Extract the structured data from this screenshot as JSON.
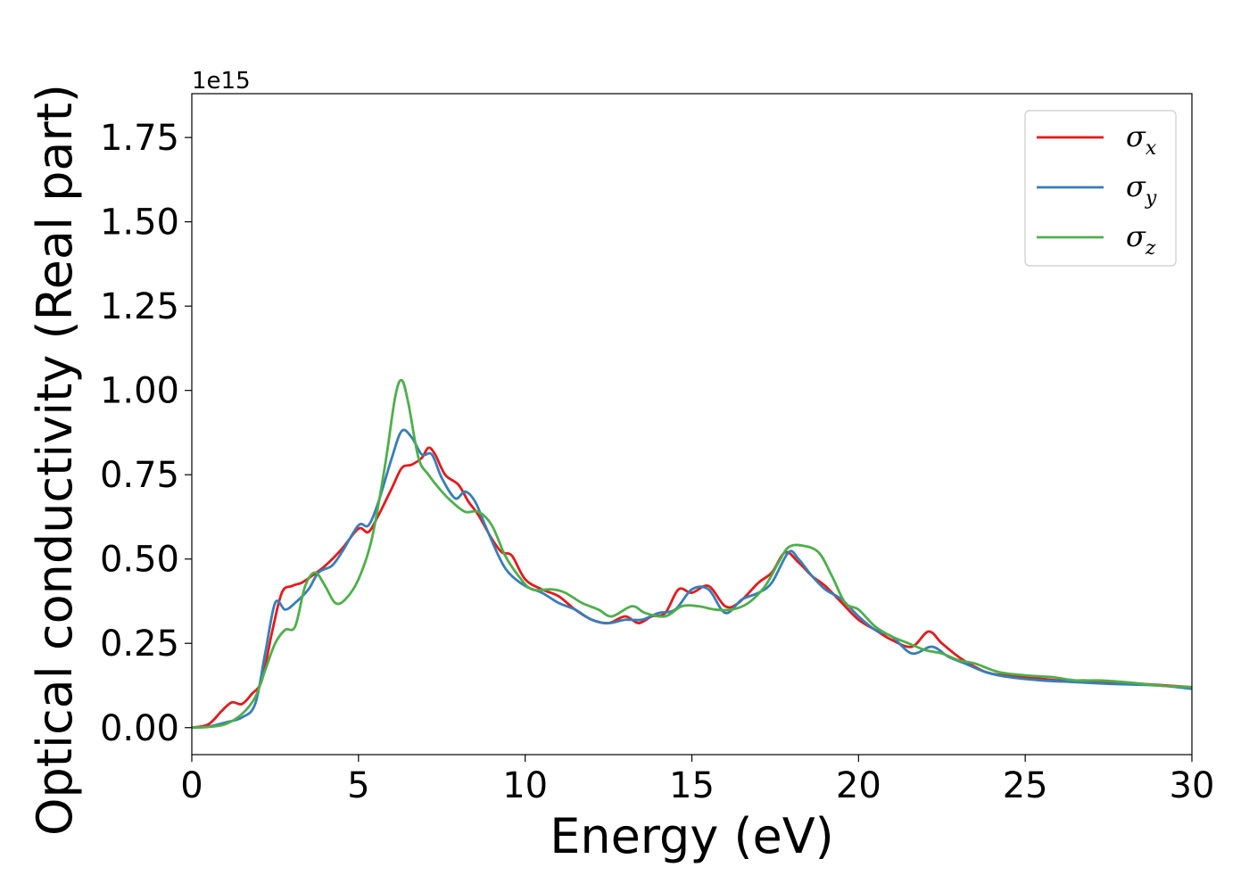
{
  "chart_data": {
    "type": "line",
    "title": "",
    "xlabel": "Energy (eV)",
    "ylabel": "Optical conductivity (Real part)",
    "y_offset_label": "1e15",
    "xlim": [
      0,
      30
    ],
    "ylim": [
      -0.08,
      1.88
    ],
    "x_ticks": [
      0,
      5,
      10,
      15,
      20,
      25,
      30
    ],
    "x_tick_labels": [
      "0",
      "5",
      "10",
      "15",
      "20",
      "25",
      "30"
    ],
    "y_ticks": [
      0.0,
      0.25,
      0.5,
      0.75,
      1.0,
      1.25,
      1.5,
      1.75
    ],
    "y_tick_labels": [
      "0.00",
      "0.25",
      "0.50",
      "0.75",
      "1.00",
      "1.25",
      "1.50",
      "1.75"
    ],
    "grid": false,
    "legend_position": "top-right",
    "series": [
      {
        "name": "σ",
        "subscript": "x",
        "color": "#e41a1c",
        "points": [
          [
            0,
            0
          ],
          [
            0.5,
            0.01
          ],
          [
            0.9,
            0.05
          ],
          [
            1.2,
            0.075
          ],
          [
            1.5,
            0.07
          ],
          [
            1.8,
            0.1
          ],
          [
            2.1,
            0.14
          ],
          [
            2.4,
            0.28
          ],
          [
            2.7,
            0.4
          ],
          [
            3.0,
            0.42
          ],
          [
            3.3,
            0.43
          ],
          [
            3.6,
            0.45
          ],
          [
            4.0,
            0.48
          ],
          [
            4.5,
            0.53
          ],
          [
            5.0,
            0.59
          ],
          [
            5.3,
            0.58
          ],
          [
            5.6,
            0.63
          ],
          [
            6.0,
            0.71
          ],
          [
            6.3,
            0.77
          ],
          [
            6.6,
            0.78
          ],
          [
            6.9,
            0.8
          ],
          [
            7.1,
            0.83
          ],
          [
            7.3,
            0.81
          ],
          [
            7.6,
            0.75
          ],
          [
            8.0,
            0.72
          ],
          [
            8.3,
            0.67
          ],
          [
            8.6,
            0.63
          ],
          [
            9.0,
            0.56
          ],
          [
            9.3,
            0.52
          ],
          [
            9.6,
            0.51
          ],
          [
            10.0,
            0.44
          ],
          [
            10.5,
            0.41
          ],
          [
            11.0,
            0.39
          ],
          [
            11.5,
            0.35
          ],
          [
            12.0,
            0.32
          ],
          [
            12.5,
            0.31
          ],
          [
            13.0,
            0.33
          ],
          [
            13.4,
            0.31
          ],
          [
            13.8,
            0.33
          ],
          [
            14.2,
            0.34
          ],
          [
            14.6,
            0.41
          ],
          [
            15.0,
            0.4
          ],
          [
            15.5,
            0.42
          ],
          [
            16.0,
            0.36
          ],
          [
            16.4,
            0.37
          ],
          [
            17.0,
            0.43
          ],
          [
            17.4,
            0.46
          ],
          [
            17.8,
            0.52
          ],
          [
            18.2,
            0.49
          ],
          [
            18.6,
            0.45
          ],
          [
            19.0,
            0.42
          ],
          [
            19.5,
            0.37
          ],
          [
            20.0,
            0.32
          ],
          [
            20.5,
            0.29
          ],
          [
            21.0,
            0.26
          ],
          [
            21.6,
            0.24
          ],
          [
            22.1,
            0.285
          ],
          [
            22.5,
            0.25
          ],
          [
            23.0,
            0.21
          ],
          [
            23.5,
            0.18
          ],
          [
            24.0,
            0.16
          ],
          [
            25.0,
            0.15
          ],
          [
            26.0,
            0.14
          ],
          [
            26.8,
            0.14
          ],
          [
            27.5,
            0.135
          ],
          [
            28.5,
            0.13
          ],
          [
            30.0,
            0.12
          ]
        ]
      },
      {
        "name": "σ",
        "subscript": "y",
        "color": "#377eb8",
        "points": [
          [
            0,
            0
          ],
          [
            0.5,
            0.003
          ],
          [
            1.0,
            0.015
          ],
          [
            1.5,
            0.03
          ],
          [
            1.9,
            0.07
          ],
          [
            2.2,
            0.22
          ],
          [
            2.5,
            0.37
          ],
          [
            2.8,
            0.35
          ],
          [
            3.1,
            0.37
          ],
          [
            3.5,
            0.41
          ],
          [
            3.8,
            0.46
          ],
          [
            4.2,
            0.48
          ],
          [
            4.5,
            0.52
          ],
          [
            5.0,
            0.6
          ],
          [
            5.3,
            0.6
          ],
          [
            5.6,
            0.67
          ],
          [
            6.0,
            0.8
          ],
          [
            6.3,
            0.88
          ],
          [
            6.6,
            0.86
          ],
          [
            6.9,
            0.81
          ],
          [
            7.2,
            0.81
          ],
          [
            7.5,
            0.74
          ],
          [
            7.9,
            0.68
          ],
          [
            8.2,
            0.7
          ],
          [
            8.5,
            0.67
          ],
          [
            8.8,
            0.6
          ],
          [
            9.2,
            0.51
          ],
          [
            9.5,
            0.46
          ],
          [
            10.0,
            0.42
          ],
          [
            10.5,
            0.4
          ],
          [
            11.0,
            0.37
          ],
          [
            11.5,
            0.35
          ],
          [
            12.0,
            0.32
          ],
          [
            12.5,
            0.31
          ],
          [
            13.0,
            0.32
          ],
          [
            13.5,
            0.32
          ],
          [
            14.0,
            0.34
          ],
          [
            14.5,
            0.35
          ],
          [
            15.0,
            0.41
          ],
          [
            15.5,
            0.41
          ],
          [
            16.0,
            0.34
          ],
          [
            16.5,
            0.38
          ],
          [
            17.0,
            0.4
          ],
          [
            17.4,
            0.43
          ],
          [
            17.9,
            0.52
          ],
          [
            18.2,
            0.5
          ],
          [
            18.6,
            0.45
          ],
          [
            19.0,
            0.41
          ],
          [
            19.5,
            0.38
          ],
          [
            20.0,
            0.33
          ],
          [
            20.5,
            0.29
          ],
          [
            21.0,
            0.27
          ],
          [
            21.6,
            0.22
          ],
          [
            22.2,
            0.24
          ],
          [
            22.7,
            0.21
          ],
          [
            23.2,
            0.19
          ],
          [
            23.8,
            0.165
          ],
          [
            24.5,
            0.15
          ],
          [
            25.5,
            0.14
          ],
          [
            26.5,
            0.135
          ],
          [
            27.5,
            0.13
          ],
          [
            29.0,
            0.125
          ],
          [
            30.0,
            0.115
          ]
        ]
      },
      {
        "name": "σ",
        "subscript": "z",
        "color": "#4daf4a",
        "points": [
          [
            0,
            0
          ],
          [
            0.5,
            0.002
          ],
          [
            1.0,
            0.01
          ],
          [
            1.5,
            0.04
          ],
          [
            1.9,
            0.09
          ],
          [
            2.2,
            0.17
          ],
          [
            2.5,
            0.25
          ],
          [
            2.8,
            0.29
          ],
          [
            3.1,
            0.3
          ],
          [
            3.4,
            0.42
          ],
          [
            3.7,
            0.46
          ],
          [
            4.0,
            0.42
          ],
          [
            4.3,
            0.37
          ],
          [
            4.6,
            0.38
          ],
          [
            5.0,
            0.44
          ],
          [
            5.4,
            0.56
          ],
          [
            5.8,
            0.78
          ],
          [
            6.1,
            0.98
          ],
          [
            6.3,
            1.03
          ],
          [
            6.5,
            0.96
          ],
          [
            6.8,
            0.8
          ],
          [
            7.1,
            0.75
          ],
          [
            7.5,
            0.7
          ],
          [
            7.8,
            0.67
          ],
          [
            8.2,
            0.64
          ],
          [
            8.6,
            0.64
          ],
          [
            9.0,
            0.6
          ],
          [
            9.4,
            0.51
          ],
          [
            9.8,
            0.45
          ],
          [
            10.2,
            0.41
          ],
          [
            10.8,
            0.41
          ],
          [
            11.2,
            0.4
          ],
          [
            11.7,
            0.37
          ],
          [
            12.2,
            0.35
          ],
          [
            12.6,
            0.33
          ],
          [
            13.2,
            0.36
          ],
          [
            13.6,
            0.34
          ],
          [
            14.2,
            0.33
          ],
          [
            14.7,
            0.36
          ],
          [
            15.2,
            0.36
          ],
          [
            15.7,
            0.35
          ],
          [
            16.2,
            0.35
          ],
          [
            16.7,
            0.37
          ],
          [
            17.2,
            0.42
          ],
          [
            17.6,
            0.49
          ],
          [
            17.9,
            0.535
          ],
          [
            18.3,
            0.54
          ],
          [
            18.8,
            0.52
          ],
          [
            19.2,
            0.45
          ],
          [
            19.6,
            0.37
          ],
          [
            20.0,
            0.35
          ],
          [
            20.5,
            0.3
          ],
          [
            21.0,
            0.27
          ],
          [
            21.5,
            0.25
          ],
          [
            22.0,
            0.23
          ],
          [
            22.5,
            0.22
          ],
          [
            23.0,
            0.2
          ],
          [
            23.5,
            0.19
          ],
          [
            24.2,
            0.165
          ],
          [
            25.0,
            0.155
          ],
          [
            25.8,
            0.15
          ],
          [
            26.5,
            0.14
          ],
          [
            27.2,
            0.14
          ],
          [
            28.0,
            0.135
          ],
          [
            29.0,
            0.125
          ],
          [
            30.0,
            0.12
          ]
        ]
      }
    ]
  }
}
